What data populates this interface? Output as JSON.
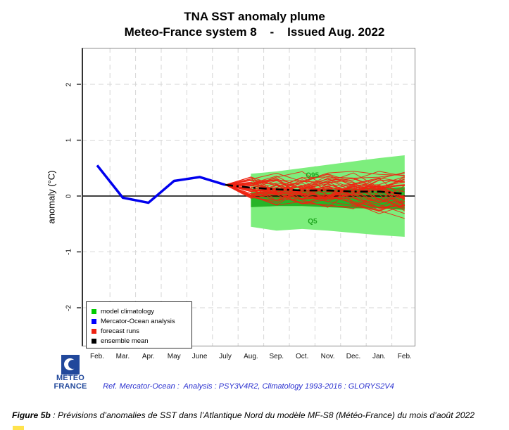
{
  "chart_data": {
    "type": "line",
    "title": "TNA SST anomaly plume",
    "subtitle": "Meteo-France system 8    -    Issued Aug. 2022",
    "ylabel": "anomaly (°C)",
    "ylim": [
      -2.65,
      2.65
    ],
    "yticks": [
      2,
      1,
      0,
      -1,
      -2
    ],
    "x_categories": [
      "Feb.",
      "Mar.",
      "Apr.",
      "May",
      "June",
      "July",
      "Aug.",
      "Sep.",
      "Oct.",
      "Nov.",
      "Dec.",
      "Jan.",
      "Feb."
    ],
    "grid": {
      "horizontal_dashed_at": [
        2,
        1,
        -1,
        -2
      ],
      "vertical": "between-months",
      "zero_line": true,
      "legend_position": "bottom-left"
    },
    "series": [
      {
        "name": "Mercator-Ocean analysis",
        "color": "#0000ee",
        "style": "solid",
        "x_index": [
          0,
          1,
          2,
          3,
          4,
          5
        ],
        "values": [
          0.55,
          -0.03,
          -0.12,
          0.27,
          0.34,
          0.2
        ]
      },
      {
        "name": "ensemble mean",
        "color": "#000000",
        "style": "dash-dot",
        "x_index": [
          5,
          6,
          7,
          8,
          9,
          10,
          11,
          12
        ],
        "values": [
          0.2,
          0.15,
          0.12,
          0.1,
          0.1,
          0.08,
          0.08,
          0.04
        ]
      }
    ],
    "climatology_band": {
      "name": "model climatology",
      "color_outer": "#7dee7d",
      "color_inner": "#27b427",
      "x_index": [
        6,
        7,
        8,
        9,
        10,
        11,
        12
      ],
      "q95": [
        0.4,
        0.44,
        0.5,
        0.56,
        0.62,
        0.68,
        0.73
      ],
      "q75": [
        0.06,
        0.09,
        0.11,
        0.12,
        0.13,
        0.14,
        0.16
      ],
      "q25": [
        -0.2,
        -0.18,
        -0.18,
        -0.2,
        -0.22,
        -0.22,
        -0.25
      ],
      "q5": [
        -0.55,
        -0.62,
        -0.59,
        -0.62,
        -0.66,
        -0.7,
        -0.73
      ],
      "labels": {
        "q95": "Q95",
        "q5": "Q5"
      },
      "label_color": "#1ea51e"
    },
    "forecast_runs": {
      "name": "forecast runs",
      "color": "#ee2211",
      "count": 45,
      "start_x_index": 5,
      "start_value": 0.2,
      "seed": 987654321,
      "persistence": 0.62,
      "spread_per_step": [
        0.2,
        0.2,
        0.22,
        0.24,
        0.26,
        0.28,
        0.3
      ],
      "clamp": [
        -0.7,
        0.82
      ]
    }
  },
  "legend": {
    "items": [
      {
        "label": "model climatology",
        "color": "#00cc00"
      },
      {
        "label": "Mercator-Ocean analysis",
        "color": "#0000ff"
      },
      {
        "label": "forecast runs",
        "color": "#ee2211"
      },
      {
        "label": "ensemble mean",
        "color": "#000000"
      }
    ]
  },
  "logo": {
    "line1": "METEO",
    "line2": "FRANCE",
    "color": "#21489b"
  },
  "reference_text": "Ref. Mercator-Ocean :  Analysis : PSY3V4R2, Climatology 1993-2016 : GLORYS2V4",
  "caption": {
    "label": "Figure 5b",
    "text": " : Prévisions d’anomalies de SST dans l’Atlantique Nord du modèle MF-S8 (Météo-France) du mois d’août 2022"
  }
}
